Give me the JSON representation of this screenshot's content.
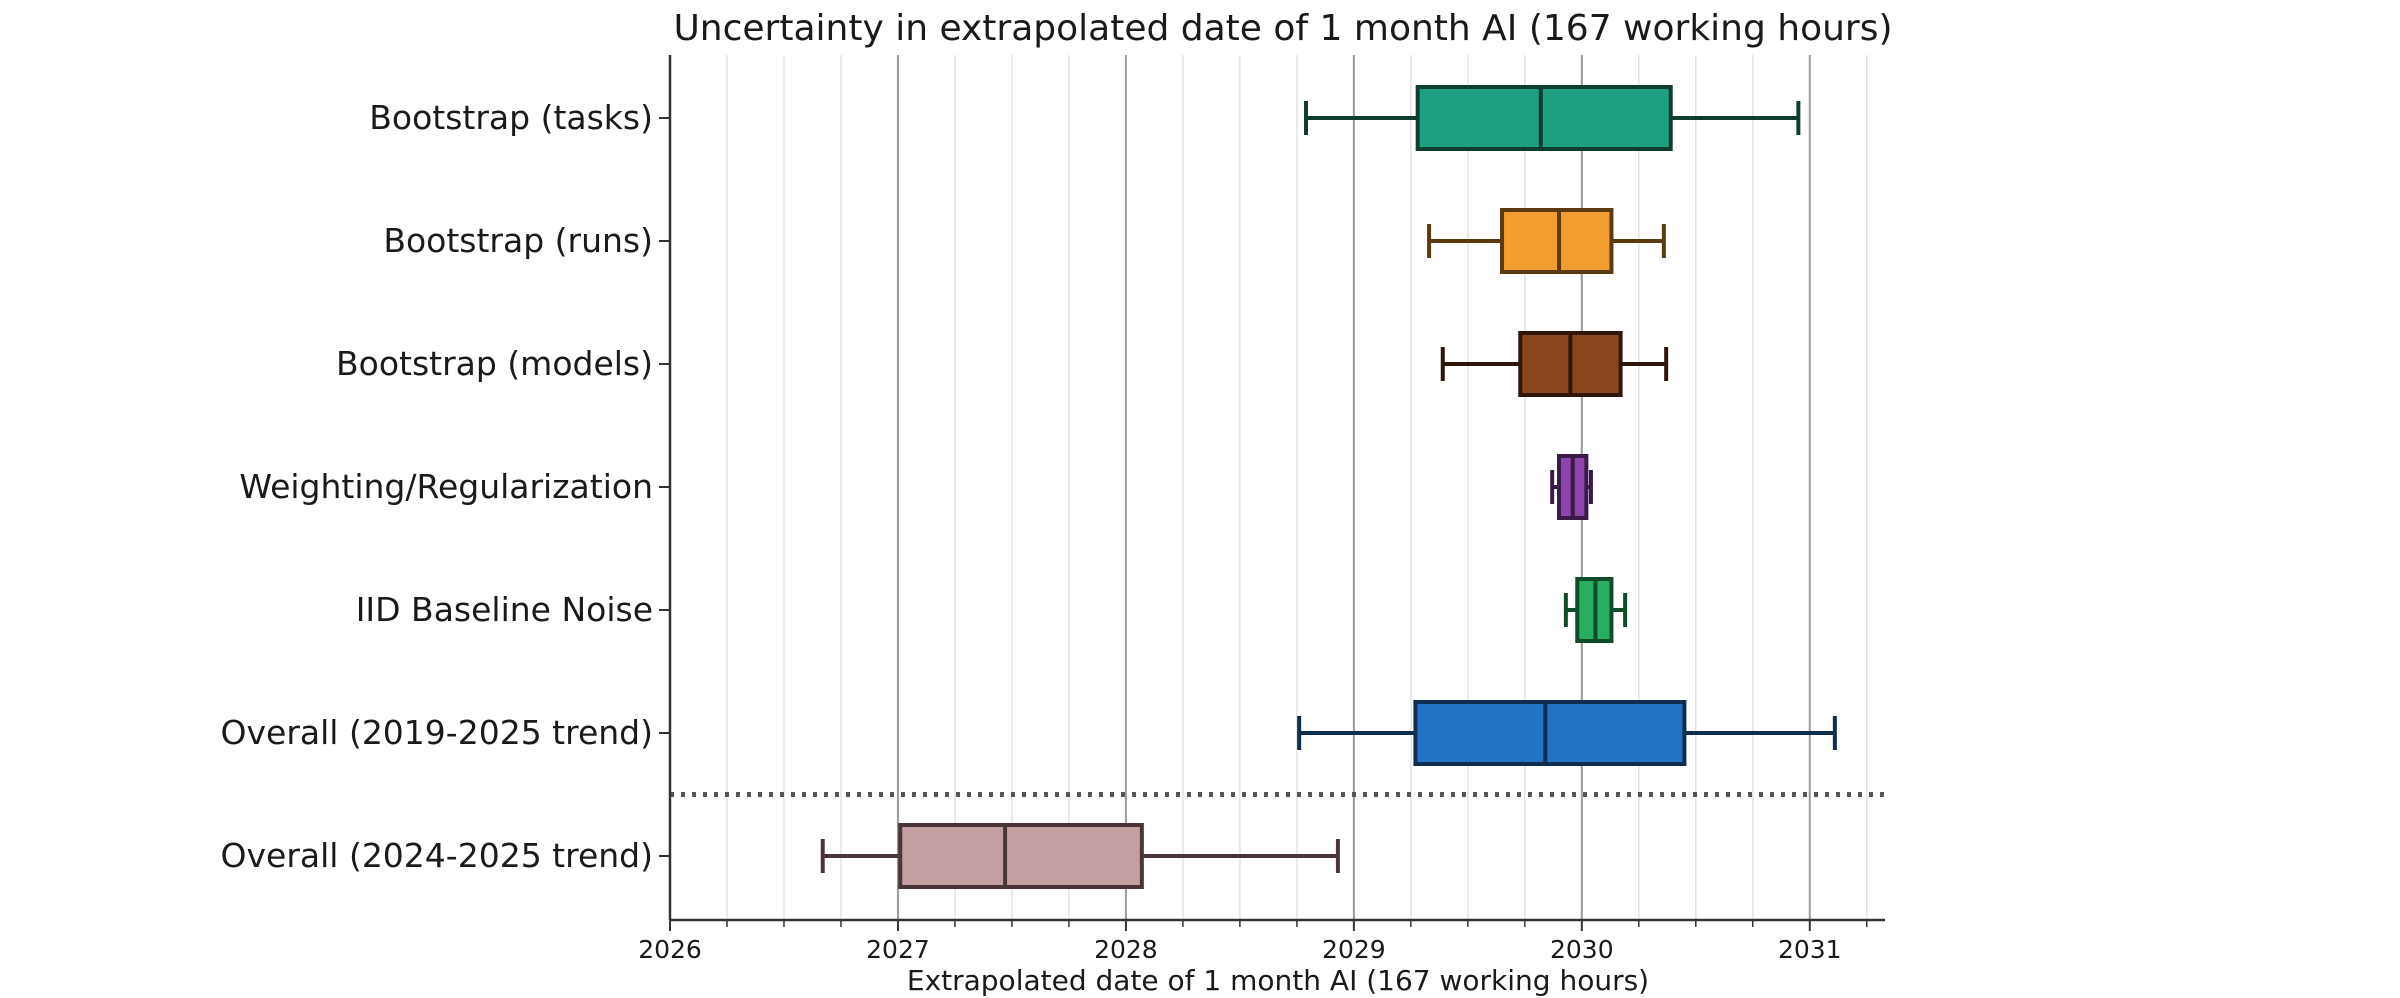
{
  "chart_data": {
    "type": "boxplot",
    "orientation": "horizontal",
    "title": "Uncertainty in extrapolated date of 1 month AI (167 working hours)",
    "xlabel": "Extrapolated date of 1 month AI (167 working hours)",
    "ylabel": "",
    "xlim": [
      2026.0,
      2031.33
    ],
    "xticks": [
      2026,
      2027,
      2028,
      2029,
      2030,
      2031
    ],
    "xtick_labels": [
      "2026",
      "2027",
      "2028",
      "2029",
      "2030",
      "2031"
    ],
    "minor_tick_step": 0.25,
    "grid": {
      "major": true,
      "minor": true,
      "axis": "x"
    },
    "separator": {
      "style": "dotted",
      "between": [
        "Overall (2019-2025 trend)",
        "Overall (2024-2025 trend)"
      ]
    },
    "boxes": [
      {
        "label": "Bootstrap (tasks)",
        "whisker_low": 2028.79,
        "q1": 2029.28,
        "median": 2029.82,
        "q3": 2030.39,
        "whisker_high": 2030.95,
        "fill": "#20a083",
        "edge": "#0f3d2e"
      },
      {
        "label": "Bootstrap (runs)",
        "whisker_low": 2029.33,
        "q1": 2029.65,
        "median": 2029.9,
        "q3": 2030.13,
        "whisker_high": 2030.36,
        "fill": "#f29d2f",
        "edge": "#5c3a10"
      },
      {
        "label": "Bootstrap (models)",
        "whisker_low": 2029.39,
        "q1": 2029.73,
        "median": 2029.95,
        "q3": 2030.17,
        "whisker_high": 2030.37,
        "fill": "#8b451c",
        "edge": "#2e160a"
      },
      {
        "label": "Weighting/Regularization",
        "whisker_low": 2029.87,
        "q1": 2029.9,
        "median": 2029.96,
        "q3": 2030.02,
        "whisker_high": 2030.04,
        "fill": "#8e44ad",
        "edge": "#3b1a48"
      },
      {
        "label": "IID Baseline Noise",
        "whisker_low": 2029.93,
        "q1": 2029.98,
        "median": 2030.06,
        "q3": 2030.13,
        "whisker_high": 2030.19,
        "fill": "#27ae60",
        "edge": "#0f4d2a"
      },
      {
        "label": "Overall (2019-2025 trend)",
        "whisker_low": 2028.76,
        "q1": 2029.27,
        "median": 2029.84,
        "q3": 2030.45,
        "whisker_high": 2031.11,
        "fill": "#2374c6",
        "edge": "#0e2d4f"
      },
      {
        "label": "Overall (2024-2025 trend)",
        "whisker_low": 2026.67,
        "q1": 2027.01,
        "median": 2027.47,
        "q3": 2028.07,
        "whisker_high": 2028.93,
        "fill": "#c39fa1",
        "edge": "#4a3638"
      }
    ]
  }
}
